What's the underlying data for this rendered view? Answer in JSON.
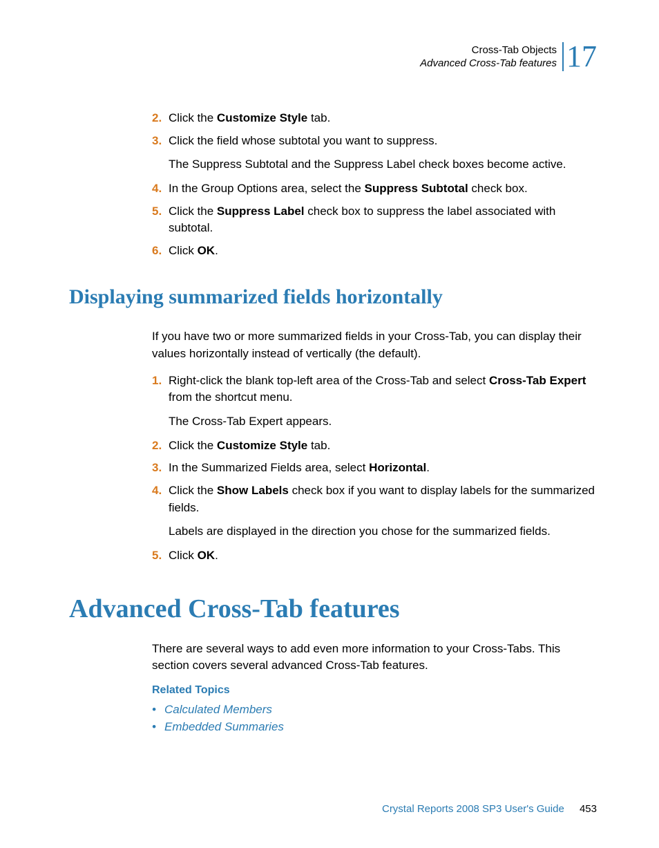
{
  "header": {
    "title": "Cross-Tab Objects",
    "subtitle": "Advanced Cross-Tab features",
    "chapter_number": "17"
  },
  "section1": {
    "steps": [
      {
        "num": "2.",
        "t1": "Click the ",
        "b1": "Customize Style",
        "t2": " tab."
      },
      {
        "num": "3.",
        "t1": "Click the field whose subtotal you want to suppress."
      },
      {
        "sub": "The Suppress Subtotal and the Suppress Label check boxes become active."
      },
      {
        "num": "4.",
        "t1": "In the Group Options area, select the ",
        "b1": "Suppress Subtotal",
        "t2": " check box."
      },
      {
        "num": "5.",
        "t1": "Click the ",
        "b1": "Suppress Label",
        "t2": " check box to suppress the label associated with subtotal."
      },
      {
        "num": "6.",
        "t1": "Click ",
        "b1": "OK",
        "t2": "."
      }
    ]
  },
  "heading2": "Displaying summarized fields horizontally",
  "section2": {
    "intro": "If you have two or more summarized fields in your Cross-Tab, you can display their values horizontally instead of vertically (the default).",
    "steps": [
      {
        "num": "1.",
        "t1": "Right-click the blank top-left area of the Cross-Tab and select ",
        "b1": "Cross-Tab Expert",
        "t2": " from the shortcut menu."
      },
      {
        "sub": "The Cross-Tab Expert appears."
      },
      {
        "num": "2.",
        "t1": "Click the ",
        "b1": "Customize Style",
        "t2": " tab."
      },
      {
        "num": "3.",
        "t1": "In the Summarized Fields area, select ",
        "b1": "Horizontal",
        "t2": "."
      },
      {
        "num": "4.",
        "t1": "Click the ",
        "b1": "Show Labels",
        "t2": " check box if you want to display labels for the summarized fields."
      },
      {
        "sub": "Labels are displayed in the direction you chose for the summarized fields."
      },
      {
        "num": "5.",
        "t1": "Click ",
        "b1": "OK",
        "t2": "."
      }
    ]
  },
  "heading1": "Advanced Cross-Tab features",
  "section3": {
    "intro": "There are several ways to add even more information to your Cross-Tabs. This section covers several advanced Cross-Tab features.",
    "related_title": "Related Topics",
    "links": [
      "Calculated Members",
      "Embedded Summaries"
    ]
  },
  "footer": {
    "title": "Crystal Reports 2008 SP3 User's Guide",
    "page": "453"
  },
  "colors": {
    "accent": "#2b7cb3",
    "step_num": "#d97a1e",
    "text": "#000000",
    "bg": "#ffffff"
  }
}
